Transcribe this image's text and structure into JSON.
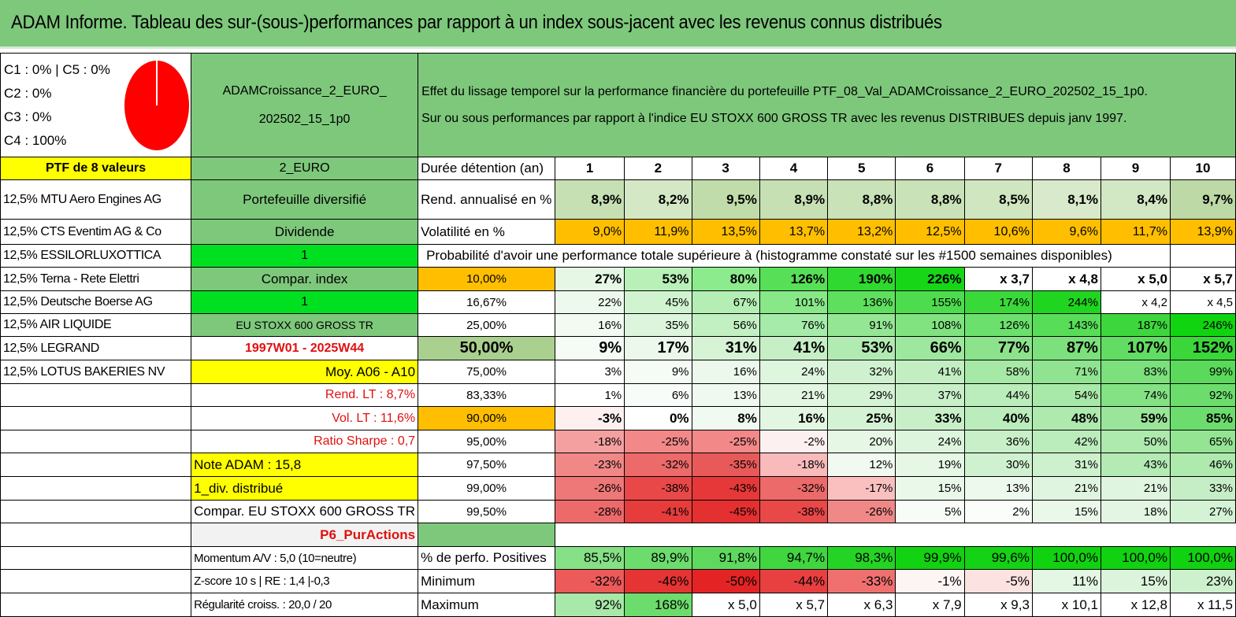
{
  "title": "ADAM Informe. Tableau des sur-(sous-)performances par rapport à un index sous-jacent avec les revenus connus distribués",
  "pie": {
    "labels": [
      "C1 : 0% | C5 : 0%",
      "C2 : 0%",
      "C3 : 0%",
      "C4 : 100%"
    ],
    "color": "#ff0000"
  },
  "portfolio_name": "ADAMCroissance_2_EURO_ 202502_15_1p0",
  "description_line1": "Effet du lissage temporel sur la performance financière du portefeuille PTF_08_Val_ADAMCroissance_2_EURO_202502_15_1p0.",
  "description_line2": "Sur ou sous performances par rapport à l'indice EU STOXX 600 GROSS TR avec les revenus DISTRIBUES depuis janv 1997.",
  "ptf_label": "PTF de 8 valeurs",
  "holdings": [
    "12,5% MTU Aero Engines AG",
    "12,5% CTS Eventim AG & Co",
    "12,5% ESSILORLUXOTTICA",
    "12,5% Terna - Rete Elettri",
    "12,5% Deutsche Boerse AG",
    "12,5% AIR LIQUIDE",
    "12,5% LEGRAND",
    "12,5% LOTUS BAKERIES NV"
  ],
  "side": {
    "currency": "2_EURO",
    "type": "Portefeuille diversifié",
    "dividend": "Dividende",
    "one_a": "1",
    "compar_index": "Compar. index",
    "one_b": "1",
    "index_name": "EU STOXX 600 GROSS TR",
    "period": "1997W01 - 2025W44",
    "moy": "Moy. A06 - A10",
    "rend_lt": "Rend. LT : 8,7%",
    "vol_lt": "Vol. LT : 11,6%",
    "sharpe": "Ratio Sharpe : 0,7",
    "note": "Note ADAM : 15,8",
    "div": "1_div. distribué",
    "compar": "Compar. EU STOXX 600 GROSS TR",
    "p6": "P6_PurActions",
    "momentum": "Momentum A/V : 5,0 (10=neutre)",
    "zscore": "Z-score 10 s | RE : 1,4 |-0,3",
    "regularite": "Régularité croiss. : 20,0 / 20"
  },
  "labels": {
    "duree": "Durée détention (an)",
    "rend": "Rend. annualisé en %",
    "vol": "Volatilité en %",
    "proba": "Probabilité d'avoir une performance totale supérieure à (histogramme constaté sur les #1500 semaines disponibles)",
    "positives": "% de perfo. Positives",
    "minimum": "Minimum",
    "maximum": "Maximum"
  },
  "years": [
    "1",
    "2",
    "3",
    "4",
    "5",
    "6",
    "7",
    "8",
    "9",
    "10"
  ],
  "rend": [
    "8,9%",
    "8,2%",
    "9,5%",
    "8,9%",
    "8,8%",
    "8,8%",
    "8,5%",
    "8,1%",
    "8,4%",
    "9,7%"
  ],
  "vol": [
    "9,0%",
    "11,9%",
    "13,5%",
    "13,7%",
    "13,2%",
    "12,5%",
    "10,6%",
    "9,6%",
    "11,7%",
    "13,9%"
  ],
  "quantiles": [
    {
      "p": "10,00%",
      "v": [
        "27%",
        "53%",
        "80%",
        "126%",
        "190%",
        "226%",
        "x 3,7",
        "x 4,8",
        "x 5,0",
        "x 5,7"
      ]
    },
    {
      "p": "16,67%",
      "v": [
        "22%",
        "45%",
        "67%",
        "101%",
        "136%",
        "155%",
        "174%",
        "244%",
        "x 4,2",
        "x 4,5"
      ]
    },
    {
      "p": "25,00%",
      "v": [
        "16%",
        "35%",
        "56%",
        "76%",
        "91%",
        "108%",
        "126%",
        "143%",
        "187%",
        "246%"
      ]
    },
    {
      "p": "50,00%",
      "v": [
        "9%",
        "17%",
        "31%",
        "41%",
        "53%",
        "66%",
        "77%",
        "87%",
        "107%",
        "152%"
      ]
    },
    {
      "p": "75,00%",
      "v": [
        "3%",
        "9%",
        "16%",
        "24%",
        "32%",
        "41%",
        "58%",
        "71%",
        "83%",
        "99%"
      ]
    },
    {
      "p": "83,33%",
      "v": [
        "1%",
        "6%",
        "13%",
        "21%",
        "29%",
        "37%",
        "44%",
        "54%",
        "74%",
        "92%"
      ]
    },
    {
      "p": "90,00%",
      "v": [
        "-3%",
        "0%",
        "8%",
        "16%",
        "25%",
        "33%",
        "40%",
        "48%",
        "59%",
        "85%"
      ]
    },
    {
      "p": "95,00%",
      "v": [
        "-18%",
        "-25%",
        "-25%",
        "-2%",
        "20%",
        "24%",
        "36%",
        "42%",
        "50%",
        "65%"
      ]
    },
    {
      "p": "97,50%",
      "v": [
        "-23%",
        "-32%",
        "-35%",
        "-18%",
        "12%",
        "19%",
        "30%",
        "31%",
        "43%",
        "46%"
      ]
    },
    {
      "p": "99,00%",
      "v": [
        "-26%",
        "-38%",
        "-43%",
        "-32%",
        "-17%",
        "15%",
        "13%",
        "21%",
        "21%",
        "33%"
      ]
    },
    {
      "p": "99,50%",
      "v": [
        "-28%",
        "-41%",
        "-45%",
        "-38%",
        "-26%",
        "5%",
        "2%",
        "15%",
        "18%",
        "27%"
      ]
    }
  ],
  "positives": [
    "85,5%",
    "89,9%",
    "91,8%",
    "94,7%",
    "98,3%",
    "99,9%",
    "99,6%",
    "100,0%",
    "100,0%",
    "100,0%"
  ],
  "minimum": [
    "-32%",
    "-46%",
    "-50%",
    "-44%",
    "-33%",
    "-1%",
    "-5%",
    "11%",
    "15%",
    "23%"
  ],
  "maximum": [
    "92%",
    "168%",
    "x 5,0",
    "x 5,7",
    "x 6,3",
    "x 7,9",
    "x 9,3",
    "x 10,1",
    "x 12,8",
    "x 11,5"
  ],
  "colors": {
    "title_green": "#7ec87c",
    "yellow": "#ffff00",
    "orange": "#ffbf00",
    "bright_green": "#00e020",
    "red_text": "#e01010"
  },
  "cell_colors": {
    "rend": [
      "#c6e0b4",
      "#d4e8c6",
      "#c0dcaa",
      "#c6e0b4",
      "#c9e2b8",
      "#c9e2b8",
      "#d0e6c0",
      "#d8eacb",
      "#d2e7c3",
      "#bcd9a6"
    ],
    "vol": [
      "#ffbf00",
      "#ffbf00",
      "#ffbf00",
      "#ffbf00",
      "#ffbf00",
      "#ffbf00",
      "#ffbf00",
      "#ffbf00",
      "#ffbf00",
      "#ffbf00"
    ],
    "quantiles": [
      [
        "#e6f7e6",
        "#b8f0b8",
        "#8ceb8c",
        "#57e057",
        "#2fd92f",
        "#17d617",
        "#ffffff",
        "#ffffff",
        "#ffffff",
        "#ffffff"
      ],
      [
        "#eef9ee",
        "#d0f3d0",
        "#b4eeb4",
        "#88e888",
        "#5ee05e",
        "#4ddc4d",
        "#3ad93a",
        "#1fd51f",
        "#ffffff",
        "#ffffff"
      ],
      [
        "#f2faf2",
        "#dcf5dc",
        "#c2f0c2",
        "#a6ebaa",
        "#94e694",
        "#80e380",
        "#6ce06c",
        "#58dd58",
        "#3dd73d",
        "#10d410"
      ],
      [
        "#f5fbf5",
        "#ebf8eb",
        "#d6f3d6",
        "#c6efc6",
        "#b2ebb2",
        "#9ee79e",
        "#8ce38c",
        "#7ce07c",
        "#62dc62",
        "#3ad63a"
      ],
      [
        "#ffffff",
        "#f5fbf5",
        "#ebf8eb",
        "#def5de",
        "#d0f1d0",
        "#c2eec2",
        "#a6e8a6",
        "#90e390",
        "#7ce07c",
        "#5ad95a"
      ],
      [
        "#ffffff",
        "#f8fcf8",
        "#eff9ef",
        "#e2f6e2",
        "#d4f2d4",
        "#c8efc8",
        "#bbecbb",
        "#a8e8a8",
        "#84e184",
        "#6cdd6c"
      ],
      [
        "#fff0f0",
        "#ffffff",
        "#f0faf0",
        "#e2f6e2",
        "#d4f2d4",
        "#c8efc8",
        "#bbecbb",
        "#aee9ae",
        "#9ae59a",
        "#6cdd6c"
      ],
      [
        "#f4a0a0",
        "#f28888",
        "#f28888",
        "#fdf0f0",
        "#e6f7e6",
        "#ddf5dd",
        "#c8efc8",
        "#bbecbb",
        "#aee9ae",
        "#94e494"
      ],
      [
        "#f08888",
        "#ec6a6a",
        "#e85a5a",
        "#f8baba",
        "#f0faf0",
        "#e6f7e6",
        "#d0f1d0",
        "#cdf0cd",
        "#b4ebb4",
        "#aee9ae"
      ],
      [
        "#ee7777",
        "#e84848",
        "#e63838",
        "#ec6a6a",
        "#fac0c0",
        "#eaf8ea",
        "#edf9ed",
        "#e0f5e0",
        "#e0f5e0",
        "#c6eec6"
      ],
      [
        "#ec6a6a",
        "#e63c3c",
        "#e43030",
        "#e84848",
        "#f08888",
        "#f7fcf7",
        "#fafdfa",
        "#eaf8ea",
        "#e3f6e3",
        "#d4f2d4"
      ]
    ],
    "positives": [
      "#86e086",
      "#6cdc6c",
      "#5ed95e",
      "#40d640",
      "#24d424",
      "#12d212",
      "#14d214",
      "#10d210",
      "#10d210",
      "#10d210"
    ],
    "minimum": [
      "#ec5a5a",
      "#e63434",
      "#e42424",
      "#e84040",
      "#f07070",
      "#fdf4f4",
      "#fde2e2",
      "#e4f6e4",
      "#dcf4dc",
      "#cdf0cd"
    ],
    "maximum": [
      "#a8e8a8",
      "#6cdc6c",
      "#ffffff",
      "#ffffff",
      "#ffffff",
      "#ffffff",
      "#ffffff",
      "#ffffff",
      "#ffffff",
      "#ffffff"
    ]
  }
}
